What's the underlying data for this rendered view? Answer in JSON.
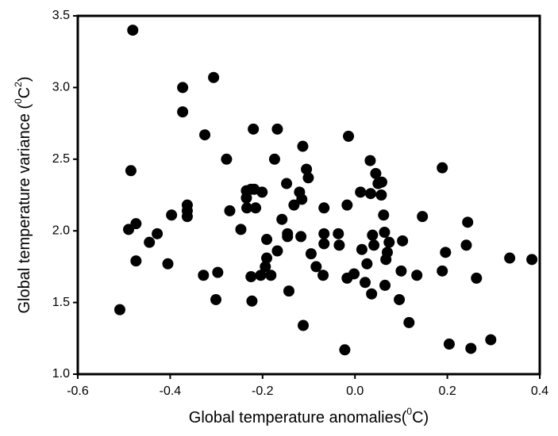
{
  "chart_data": {
    "type": "scatter",
    "x_label": [
      "Global temperature anomalies(",
      "0",
      "C)"
    ],
    "y_label": [
      "Global temperature variance (",
      "0",
      "C",
      "2",
      ")"
    ],
    "color": "#000000",
    "xlim": [
      -0.6,
      0.4
    ],
    "ylim": [
      1.0,
      3.5
    ],
    "xticks": [
      -0.6,
      -0.4,
      -0.2,
      {
        "value": 0,
        "label": "0.0"
      },
      0.2,
      0.4
    ],
    "yticks": [
      {
        "value": 1,
        "label": "1.0"
      },
      1.5,
      {
        "value": 2,
        "label": "2.0"
      },
      2.5,
      {
        "value": 3,
        "label": "3.0"
      },
      3.5
    ],
    "x": [
      -0.509,
      -0.481,
      -0.485,
      -0.49,
      -0.474,
      -0.474,
      -0.445,
      -0.428,
      -0.397,
      -0.405,
      -0.373,
      -0.373,
      -0.363,
      -0.363,
      -0.363,
      -0.328,
      -0.325,
      -0.306,
      -0.297,
      -0.301,
      -0.278,
      -0.271,
      -0.247,
      -0.235,
      -0.235,
      -0.234,
      -0.225,
      -0.218,
      -0.215,
      -0.225,
      -0.223,
      -0.22,
      -0.204,
      -0.201,
      -0.194,
      -0.191,
      -0.191,
      -0.182,
      -0.174,
      -0.168,
      -0.168,
      -0.158,
      -0.146,
      -0.148,
      -0.146,
      -0.143,
      -0.132,
      -0.12,
      -0.117,
      -0.115,
      -0.113,
      -0.112,
      -0.105,
      -0.101,
      -0.095,
      -0.084,
      -0.067,
      -0.067,
      -0.067,
      -0.069,
      -0.036,
      -0.034,
      -0.022,
      -0.017,
      -0.017,
      -0.014,
      -0.002,
      0.012,
      0.015,
      0.022,
      0.026,
      0.033,
      0.034,
      0.038,
      0.036,
      0.041,
      0.045,
      0.05,
      0.057,
      0.058,
      0.062,
      0.064,
      0.065,
      0.067,
      0.07,
      0.074,
      0.096,
      0.103,
      0.1,
      0.117,
      0.134,
      0.146,
      0.189,
      0.189,
      0.196,
      0.204,
      0.244,
      0.241,
      0.251,
      0.263,
      0.294,
      0.335,
      0.383
    ],
    "values": [
      1.45,
      3.4,
      2.42,
      2.01,
      2.05,
      1.79,
      1.92,
      1.98,
      2.11,
      1.77,
      3.0,
      2.83,
      2.18,
      2.14,
      2.1,
      1.69,
      2.67,
      3.07,
      1.71,
      1.52,
      2.5,
      2.14,
      2.01,
      2.28,
      2.23,
      2.16,
      2.29,
      2.29,
      2.16,
      1.68,
      1.51,
      2.71,
      1.69,
      2.27,
      1.75,
      1.81,
      1.94,
      1.69,
      2.5,
      2.71,
      1.86,
      2.08,
      1.96,
      2.33,
      1.98,
      1.58,
      2.18,
      2.27,
      1.96,
      2.22,
      2.59,
      1.34,
      2.43,
      2.37,
      1.84,
      1.75,
      2.16,
      1.98,
      1.91,
      1.69,
      1.98,
      1.9,
      1.17,
      2.18,
      1.67,
      2.66,
      1.7,
      2.27,
      1.87,
      1.64,
      1.77,
      2.49,
      2.26,
      1.97,
      1.56,
      1.9,
      2.4,
      2.33,
      2.25,
      2.34,
      2.11,
      1.99,
      1.62,
      1.8,
      1.85,
      1.92,
      1.52,
      1.93,
      1.72,
      1.36,
      1.69,
      2.1,
      2.44,
      1.72,
      1.85,
      1.21,
      2.06,
      1.9,
      1.18,
      1.67,
      1.24,
      1.81,
      1.8
    ]
  }
}
